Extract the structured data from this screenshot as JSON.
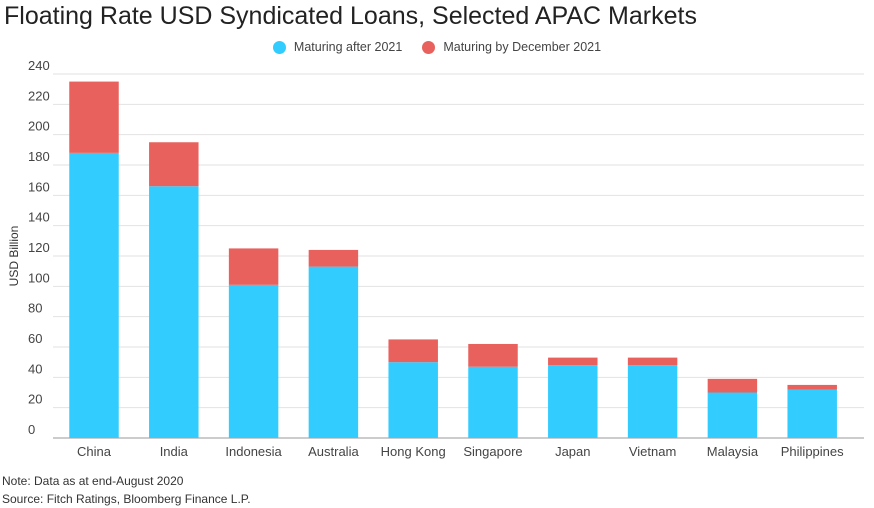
{
  "chart_data": {
    "type": "bar",
    "stacked": true,
    "title": "Floating Rate USD Syndicated Loans, Selected APAC Markets",
    "xlabel": "",
    "ylabel": "USD Billion",
    "ylim": [
      0,
      240
    ],
    "yticks": [
      0,
      20,
      40,
      60,
      80,
      100,
      120,
      140,
      160,
      180,
      200,
      220,
      240
    ],
    "grid": true,
    "legend_position": "top-center",
    "categories": [
      "China",
      "India",
      "Indonesia",
      "Australia",
      "Hong Kong",
      "Singapore",
      "Japan",
      "Vietnam",
      "Malaysia",
      "Philippines"
    ],
    "series": [
      {
        "name": "Maturing after 2021",
        "color": "#33ccff",
        "values": [
          188,
          166,
          101,
          113,
          50,
          47,
          48,
          48,
          30,
          32
        ]
      },
      {
        "name": "Maturing by December 2021",
        "color": "#e8615c",
        "values": [
          47,
          29,
          24,
          11,
          15,
          15,
          5,
          5,
          9,
          3
        ]
      }
    ]
  },
  "notes": {
    "note": "Note: Data as at end-August 2020",
    "source": "Source: Fitch Ratings, Bloomberg Finance L.P."
  }
}
